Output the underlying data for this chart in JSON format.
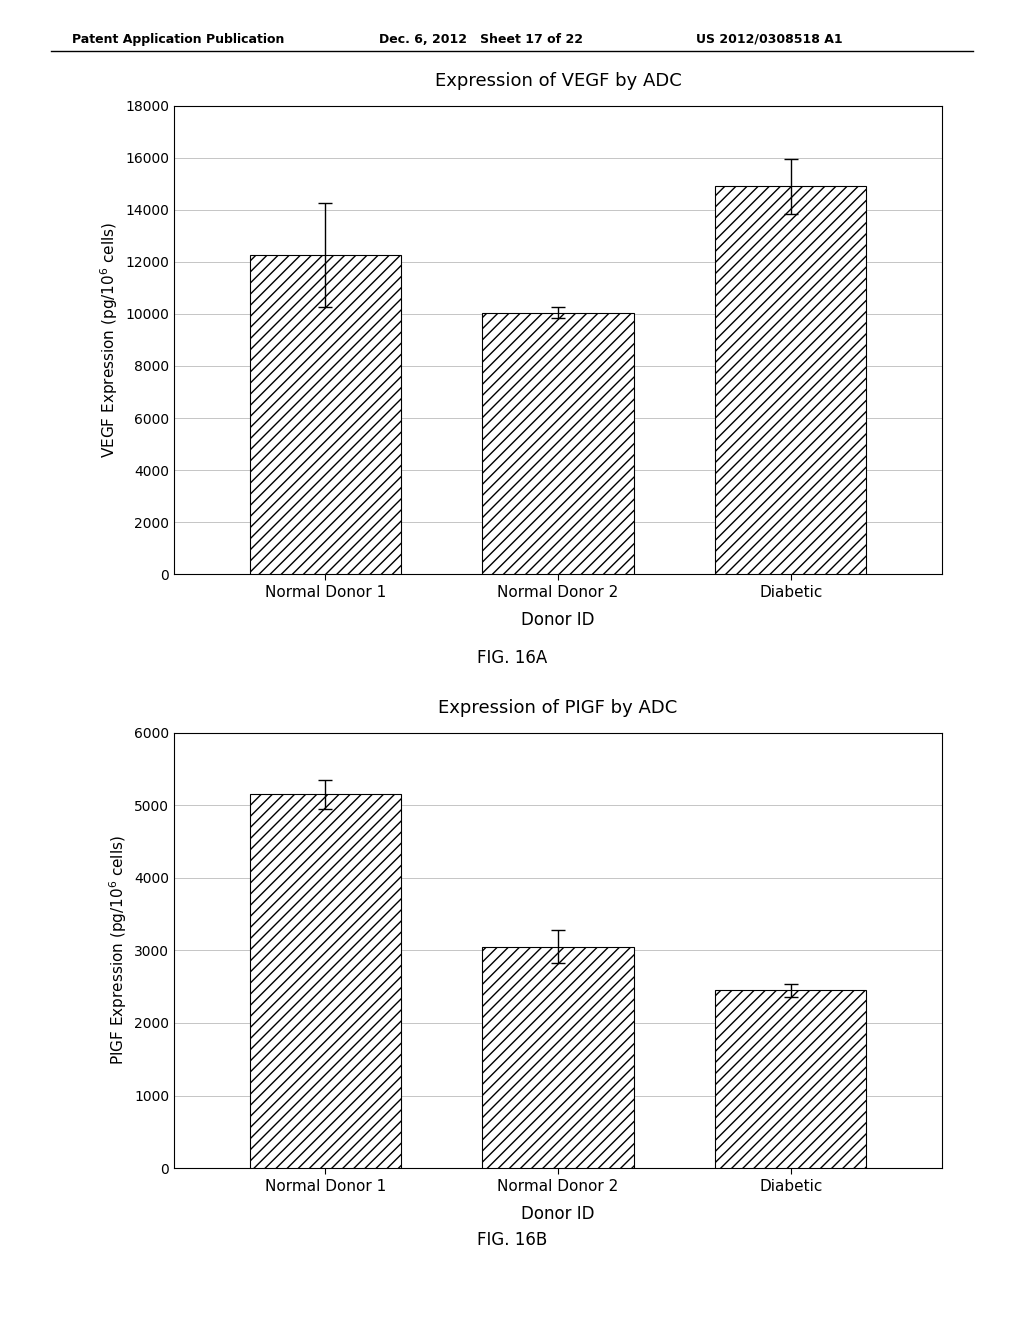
{
  "header_left": "Patent Application Publication",
  "header_mid": "Dec. 6, 2012   Sheet 17 of 22",
  "header_right": "US 2012/0308518 A1",
  "chart1": {
    "title": "Expression of VEGF by ADC",
    "categories": [
      "Normal Donor 1",
      "Normal Donor 2",
      "Diabetic"
    ],
    "values": [
      12250,
      10050,
      14900
    ],
    "errors": [
      2000,
      200,
      1050
    ],
    "ylabel1": "VEGF Expression (pg/10",
    "ylabel2": " cells)",
    "xlabel": "Donor ID",
    "ylim": [
      0,
      18000
    ],
    "yticks": [
      0,
      2000,
      4000,
      6000,
      8000,
      10000,
      12000,
      14000,
      16000,
      18000
    ],
    "fig_label": "FIG. 16A"
  },
  "chart2": {
    "title": "Expression of PIGF by ADC",
    "categories": [
      "Normal Donor 1",
      "Normal Donor 2",
      "Diabetic"
    ],
    "values": [
      5150,
      3050,
      2450
    ],
    "errors": [
      200,
      230,
      90
    ],
    "ylabel1": "PIGF Expression (pg/10",
    "ylabel2": " cells)",
    "xlabel": "Donor ID",
    "ylim": [
      0,
      6000
    ],
    "yticks": [
      0,
      1000,
      2000,
      3000,
      4000,
      5000,
      6000
    ],
    "fig_label": "FIG. 16B"
  },
  "bar_edgecolor": "#000000",
  "hatch": "///",
  "background_color": "#ffffff",
  "grid_color": "#bbbbbb",
  "grid_style": "-"
}
